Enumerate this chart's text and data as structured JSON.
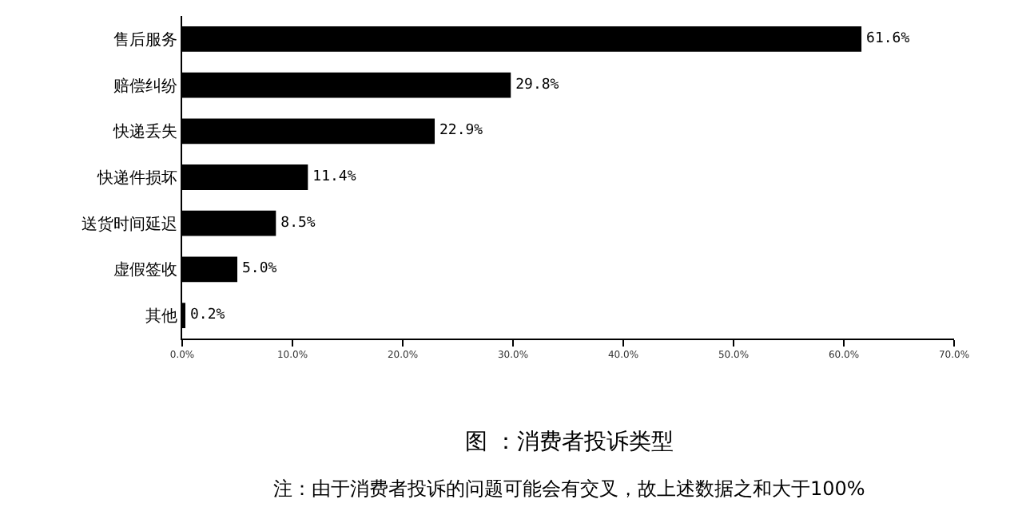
{
  "chart_data": {
    "type": "bar",
    "orientation": "horizontal",
    "title": "图 ：消费者投诉类型",
    "categories": [
      "售后服务",
      "赔偿纠纷",
      "快递丢失",
      "快递件损坏",
      "送货时间延迟",
      "虚假签收",
      "其他"
    ],
    "values": [
      61.6,
      29.8,
      22.9,
      11.4,
      8.5,
      5.0,
      0.2
    ],
    "value_labels": [
      "61.6%",
      "29.8%",
      "22.9%",
      "11.4%",
      "8.5%",
      "5.0%",
      "0.2%"
    ],
    "color": "#000000",
    "xlim": [
      0,
      70
    ],
    "xticks": [
      {
        "value": 0,
        "label": "0.0%"
      },
      {
        "value": 10,
        "label": "10.0%"
      },
      {
        "value": 20,
        "label": "20.0%"
      },
      {
        "value": 30,
        "label": "30.0%"
      },
      {
        "value": 40,
        "label": "40.0%"
      },
      {
        "value": 50,
        "label": "50.0%"
      },
      {
        "value": 60,
        "label": "60.0%"
      },
      {
        "value": 70,
        "label": "70.0%"
      }
    ],
    "annotations": [
      "注：由于消费者投诉的问题可能会有交叉，故上述数据之和大于100%"
    ]
  }
}
